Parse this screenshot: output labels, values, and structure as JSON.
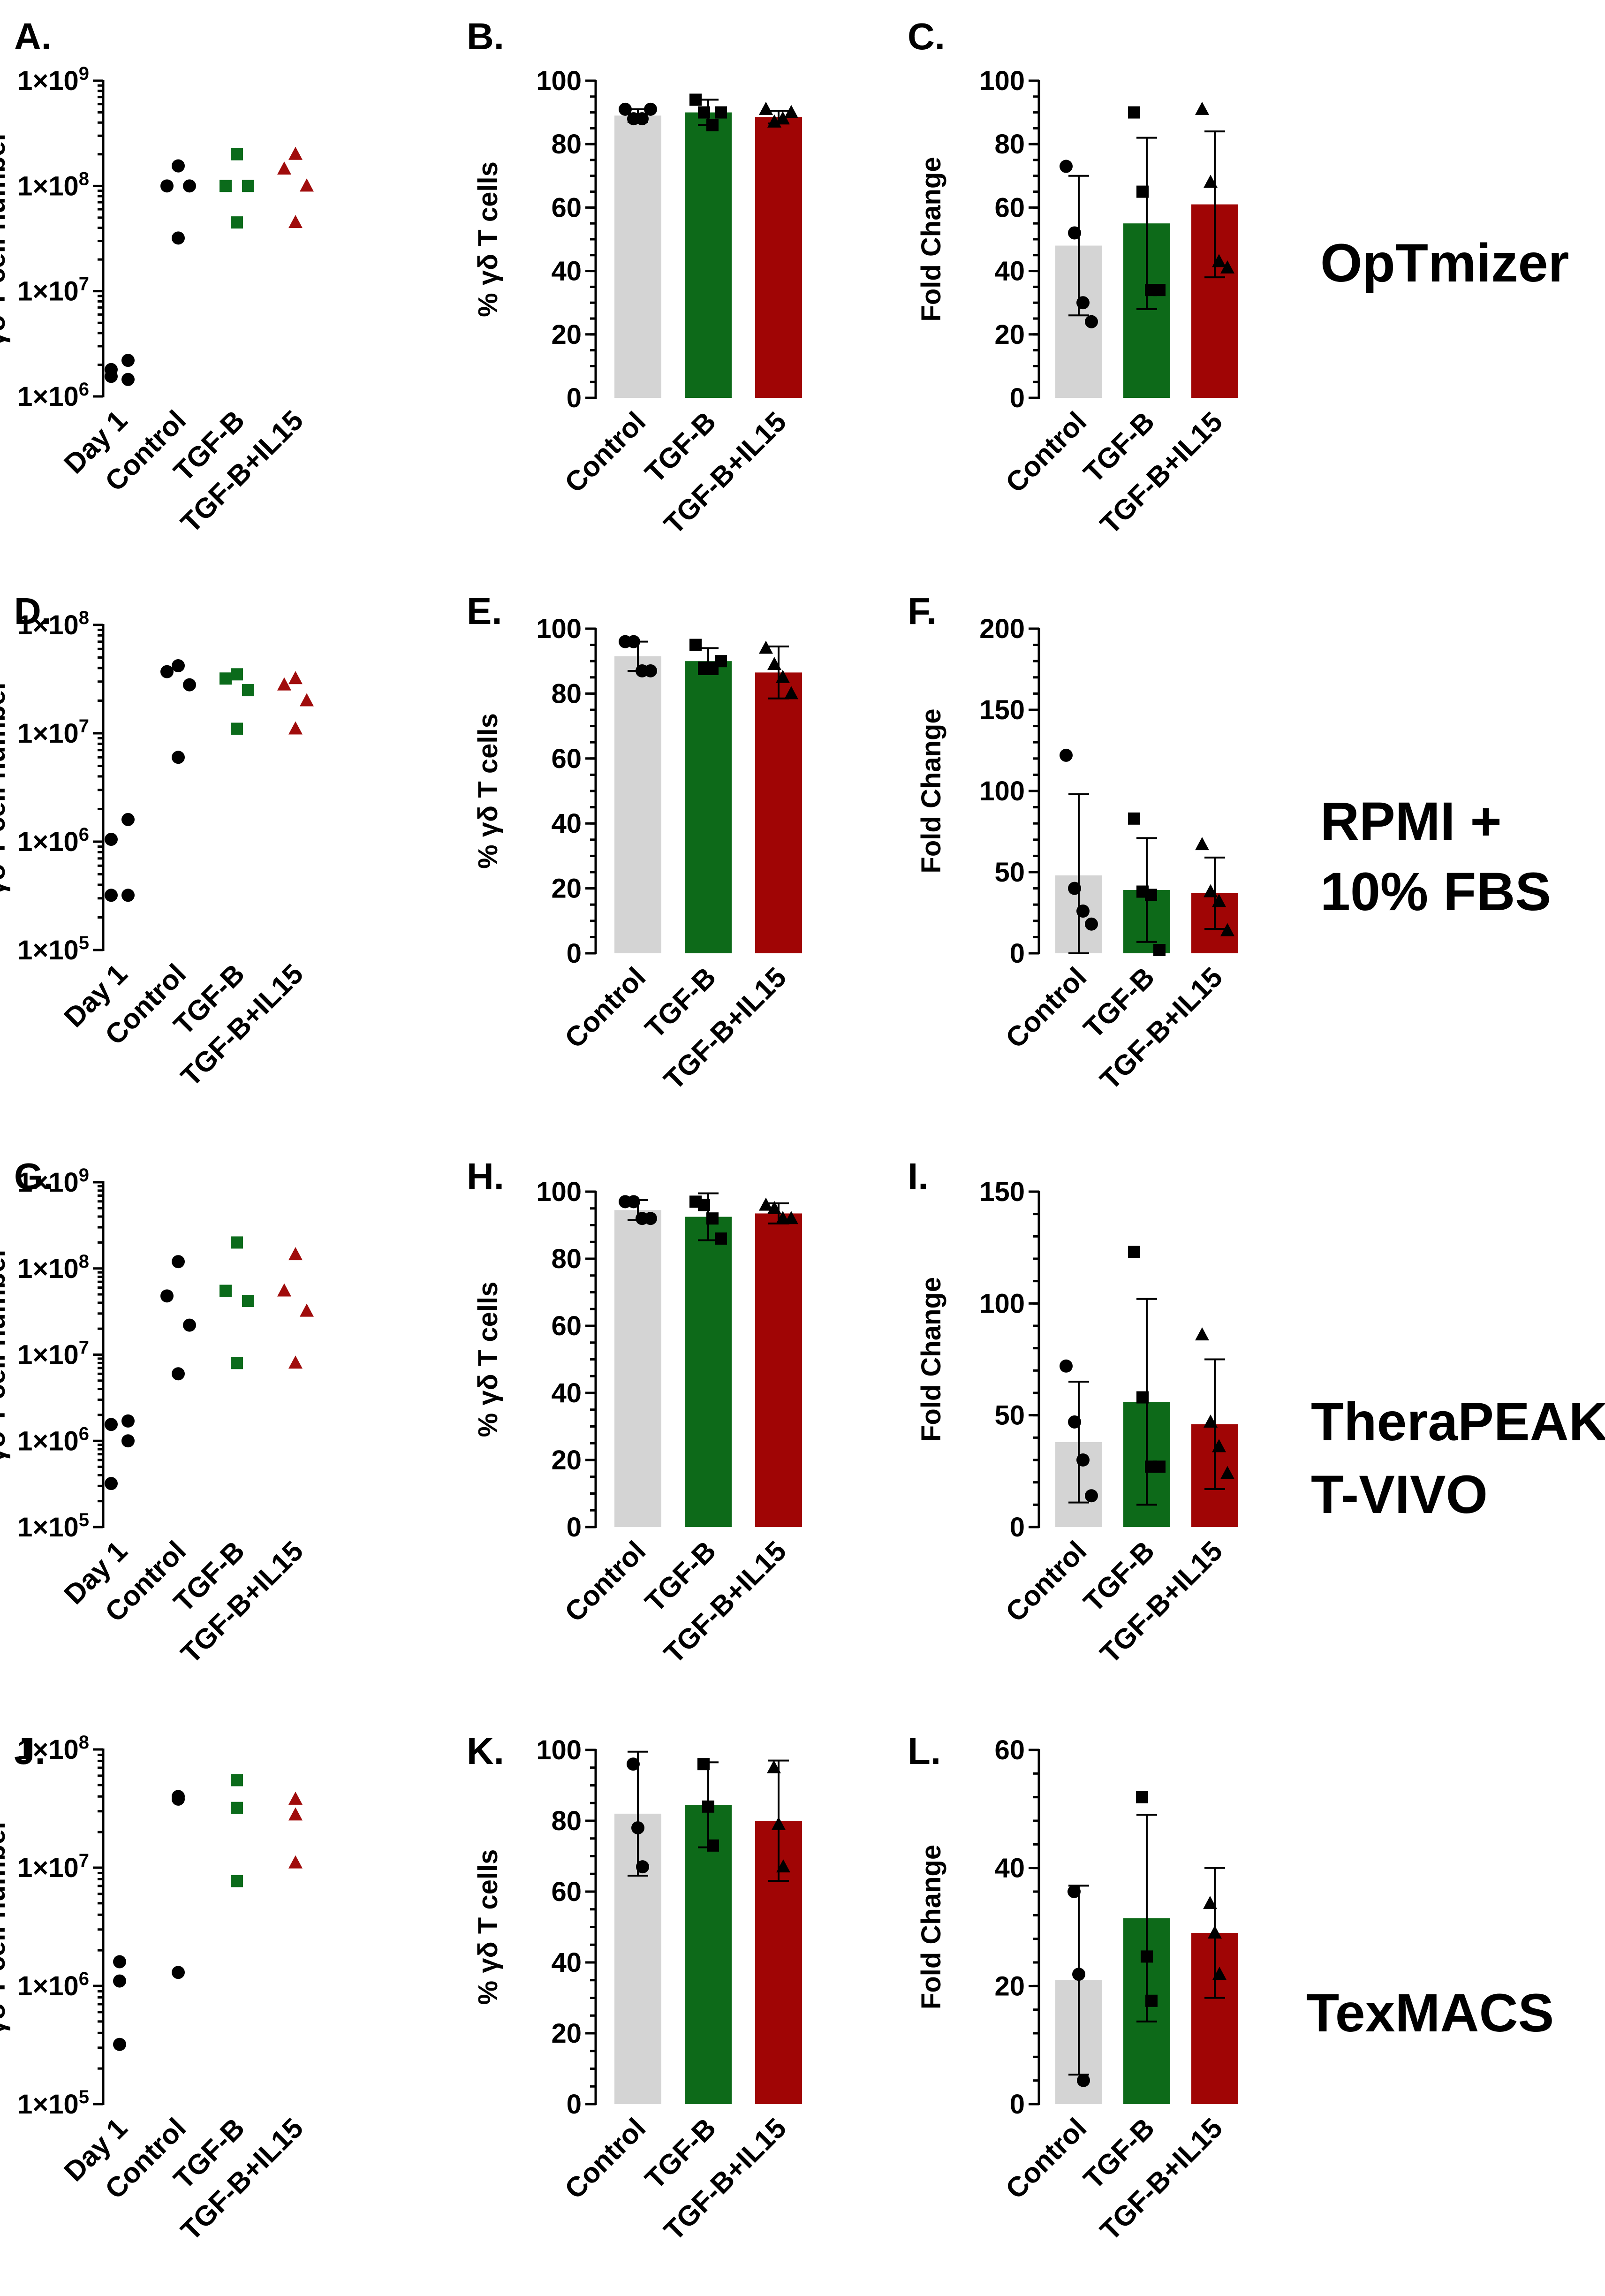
{
  "colors": {
    "control": "#000000",
    "tgfb": "#0b6b1b",
    "tgfbil15": "#a00c0c",
    "bar_control": "#d4d4d4",
    "bar_tgfb": "#0d6a19",
    "bar_tgfbil15": "#a00505"
  },
  "row_labels": [
    [
      "OpTmizer"
    ],
    [
      "RPMI +",
      "10% FBS"
    ],
    [
      "TheraPEAK",
      "T-VIVO"
    ],
    [
      "TexMACS"
    ]
  ],
  "chart_data": [
    {
      "panel": "A.",
      "type": "scatter",
      "scale": "log",
      "ylabel": "γδ T cell number",
      "ylim": [
        1000000,
        1000000000
      ],
      "yticks": [
        "1×10^6",
        "1×10^7",
        "1×10^8",
        "1×10^9"
      ],
      "categories": [
        "Day 1",
        "Control",
        "TGF-B",
        "TGF-B+IL15"
      ],
      "series": [
        {
          "name": "Day 1",
          "color": "#000000",
          "marker": "circle",
          "values": [
            2200000,
            1800000,
            1450000,
            1550000
          ]
        },
        {
          "name": "Control",
          "color": "#000000",
          "marker": "circle",
          "values": [
            155000000,
            100000000,
            100000000,
            32000000
          ]
        },
        {
          "name": "TGF-B",
          "color": "#0b6b1b",
          "marker": "square",
          "values": [
            200000000,
            100000000,
            100000000,
            45000000
          ]
        },
        {
          "name": "TGF-B+IL15",
          "color": "#a00c0c",
          "marker": "triangle",
          "values": [
            200000000,
            145000000,
            100000000,
            45000000
          ]
        }
      ]
    },
    {
      "panel": "B.",
      "type": "bar",
      "ylabel": "% γδ T cells",
      "ylim": [
        0,
        100
      ],
      "yticks": [
        "0",
        "20",
        "40",
        "60",
        "80",
        "100"
      ],
      "categories": [
        "Control",
        "TGF-B",
        "TGF-B+IL15"
      ],
      "means": [
        89,
        90,
        88.5
      ],
      "errors": [
        2,
        4,
        2
      ],
      "points": [
        [
          91,
          88,
          88,
          91
        ],
        [
          94,
          90,
          86,
          90
        ],
        [
          91,
          87,
          88,
          90
        ]
      ]
    },
    {
      "panel": "C.",
      "type": "bar",
      "ylabel": "Fold Change",
      "ylim": [
        0,
        100
      ],
      "yticks": [
        "0",
        "20",
        "40",
        "60",
        "80",
        "100"
      ],
      "categories": [
        "Control",
        "TGF-B",
        "TGF-B+IL15"
      ],
      "means": [
        48,
        55,
        61
      ],
      "errors": [
        22,
        27,
        23
      ],
      "points": [
        [
          73,
          52,
          30,
          24
        ],
        [
          90,
          65,
          34,
          34
        ],
        [
          91,
          68,
          43,
          41
        ]
      ]
    },
    {
      "panel": "D.",
      "type": "scatter",
      "scale": "log",
      "ylabel": "γδ T cell number",
      "ylim": [
        100000,
        100000000
      ],
      "yticks": [
        "1×10^5",
        "1×10^6",
        "1×10^7",
        "1×10^8"
      ],
      "categories": [
        "Day 1",
        "Control",
        "TGF-B",
        "TGF-B+IL15"
      ],
      "series": [
        {
          "name": "Day 1",
          "color": "#000000",
          "marker": "circle",
          "values": [
            1600000,
            1050000,
            320000,
            320000
          ]
        },
        {
          "name": "Control",
          "color": "#000000",
          "marker": "circle",
          "values": [
            42000000,
            37000000,
            28000000,
            6000000
          ]
        },
        {
          "name": "TGF-B",
          "color": "#0b6b1b",
          "marker": "square",
          "values": [
            35000000,
            32000000,
            25000000,
            11000000
          ]
        },
        {
          "name": "TGF-B+IL15",
          "color": "#a00c0c",
          "marker": "triangle",
          "values": [
            32000000,
            28000000,
            20000000,
            11000000
          ]
        }
      ]
    },
    {
      "panel": "E.",
      "type": "bar",
      "ylabel": "% γδ T cells",
      "ylim": [
        0,
        100
      ],
      "yticks": [
        "0",
        "20",
        "40",
        "60",
        "80",
        "100"
      ],
      "categories": [
        "Control",
        "TGF-B",
        "TGF-B+IL15"
      ],
      "means": [
        91.5,
        90,
        86.5
      ],
      "errors": [
        4.5,
        4,
        8
      ],
      "points": [
        [
          96,
          96,
          87,
          87
        ],
        [
          95,
          88,
          88,
          90
        ],
        [
          94,
          89,
          85,
          80
        ]
      ]
    },
    {
      "panel": "F.",
      "type": "bar",
      "ylabel": "Fold Change",
      "ylim": [
        0,
        200
      ],
      "yticks": [
        "0",
        "50",
        "100",
        "150",
        "200"
      ],
      "categories": [
        "Control",
        "TGF-B",
        "TGF-B+IL15"
      ],
      "means": [
        48,
        39,
        37
      ],
      "errors": [
        50,
        32,
        22
      ],
      "points": [
        [
          122,
          40,
          26,
          18
        ],
        [
          83,
          38,
          36,
          2
        ],
        [
          67,
          38,
          32,
          14
        ]
      ]
    },
    {
      "panel": "G.",
      "type": "scatter",
      "scale": "log",
      "ylabel": "γδ T cell number",
      "ylim": [
        100000,
        1000000000
      ],
      "yticks": [
        "1×10^5",
        "1×10^6",
        "1×10^7",
        "1×10^8",
        "1×10^9"
      ],
      "categories": [
        "Day 1",
        "Control",
        "TGF-B",
        "TGF-B+IL15"
      ],
      "series": [
        {
          "name": "Day 1",
          "color": "#000000",
          "marker": "circle",
          "values": [
            1700000,
            1550000,
            1000000,
            320000
          ]
        },
        {
          "name": "Control",
          "color": "#000000",
          "marker": "circle",
          "values": [
            120000000,
            48000000,
            22000000,
            6000000
          ]
        },
        {
          "name": "TGF-B",
          "color": "#0b6b1b",
          "marker": "square",
          "values": [
            200000000,
            55000000,
            42000000,
            8000000
          ]
        },
        {
          "name": "TGF-B+IL15",
          "color": "#a00c0c",
          "marker": "triangle",
          "values": [
            145000000,
            55000000,
            32000000,
            8000000
          ]
        }
      ]
    },
    {
      "panel": "H.",
      "type": "bar",
      "ylabel": "% γδ T cells",
      "ylim": [
        0,
        100
      ],
      "yticks": [
        "0",
        "20",
        "40",
        "60",
        "80",
        "100"
      ],
      "categories": [
        "Control",
        "TGF-B",
        "TGF-B+IL15"
      ],
      "means": [
        94.5,
        92.5,
        93.5
      ],
      "errors": [
        3,
        7,
        3
      ],
      "points": [
        [
          97,
          97,
          92,
          92
        ],
        [
          97,
          96,
          92,
          86
        ],
        [
          96,
          95,
          92,
          92
        ]
      ]
    },
    {
      "panel": "I.",
      "type": "bar",
      "ylabel": "Fold Change",
      "ylim": [
        0,
        150
      ],
      "yticks": [
        "0",
        "50",
        "100",
        "150"
      ],
      "categories": [
        "Control",
        "TGF-B",
        "TGF-B+IL15"
      ],
      "means": [
        38,
        56,
        46
      ],
      "errors": [
        27,
        46,
        29
      ],
      "points": [
        [
          72,
          47,
          30,
          14
        ],
        [
          123,
          58,
          27,
          27
        ],
        [
          86,
          47,
          36,
          24
        ]
      ]
    },
    {
      "panel": "J.",
      "type": "scatter",
      "scale": "log",
      "ylabel": "γδ T cell number",
      "ylim": [
        100000,
        100000000
      ],
      "yticks": [
        "1×10^5",
        "1×10^6",
        "1×10^7",
        "1×10^8"
      ],
      "categories": [
        "Day 1",
        "Control",
        "TGF-B",
        "TGF-B+IL15"
      ],
      "series": [
        {
          "name": "Day 1",
          "color": "#000000",
          "marker": "circle",
          "values": [
            1600000,
            1100000,
            320000
          ]
        },
        {
          "name": "Control",
          "color": "#000000",
          "marker": "circle",
          "values": [
            40000000,
            38000000,
            1300000
          ]
        },
        {
          "name": "TGF-B",
          "color": "#0b6b1b",
          "marker": "square",
          "values": [
            55000000,
            32000000,
            7700000
          ]
        },
        {
          "name": "TGF-B+IL15",
          "color": "#a00c0c",
          "marker": "triangle",
          "values": [
            38000000,
            28000000,
            11000000
          ]
        }
      ]
    },
    {
      "panel": "K.",
      "type": "bar",
      "ylabel": "% γδ T cells",
      "ylim": [
        0,
        100
      ],
      "yticks": [
        "0",
        "20",
        "40",
        "60",
        "80",
        "100"
      ],
      "categories": [
        "Control",
        "TGF-B",
        "TGF-B+IL15"
      ],
      "means": [
        82,
        84.5,
        80
      ],
      "errors": [
        17.5,
        12,
        17
      ],
      "points": [
        [
          96,
          78,
          67
        ],
        [
          96,
          84,
          73
        ],
        [
          95,
          79,
          67
        ]
      ]
    },
    {
      "panel": "L.",
      "type": "bar",
      "ylabel": "Fold Change",
      "ylim": [
        0,
        60
      ],
      "yticks": [
        "0",
        "20",
        "40",
        "60"
      ],
      "categories": [
        "Control",
        "TGF-B",
        "TGF-B+IL15"
      ],
      "means": [
        21,
        31.5,
        29
      ],
      "errors": [
        16,
        17.5,
        11
      ],
      "points": [
        [
          36,
          22,
          4
        ],
        [
          52,
          25,
          17.5
        ],
        [
          34,
          29,
          22
        ]
      ]
    }
  ]
}
